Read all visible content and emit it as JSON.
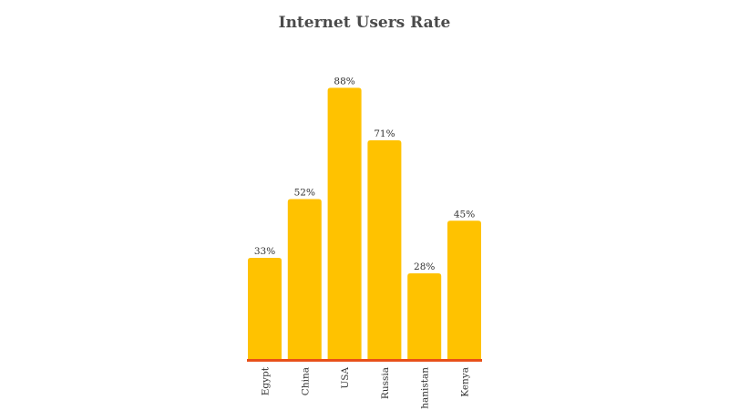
{
  "chart_data": {
    "type": "bar",
    "title": "Internet Users Rate",
    "categories": [
      "Egypt",
      "China",
      "USA",
      "Russia",
      "hanistan",
      "Kenya"
    ],
    "values": [
      33,
      52,
      88,
      71,
      28,
      45
    ],
    "value_labels": [
      "33%",
      "52%",
      "88%",
      "71%",
      "28%",
      "45%"
    ],
    "unit": "%",
    "ylim": [
      0,
      100
    ],
    "grid": false,
    "legend": "none",
    "colors": {
      "bar": "#FFC200",
      "baseline": "#E8501A"
    }
  }
}
